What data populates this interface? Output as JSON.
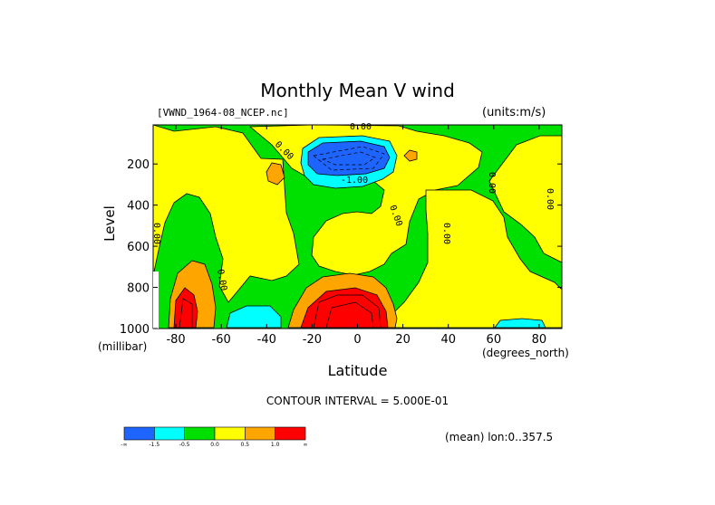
{
  "chart_data": {
    "type": "heatmap",
    "title": "Monthly Mean V wind",
    "dataset_label": "[VWND_1964-08_NCEP.nc]",
    "units_label": "(units:m/s)",
    "xlabel": "Latitude",
    "x_units": "(degrees_north)",
    "ylabel": "Level",
    "y_units": "(millibar)",
    "x_ticks": [
      -80,
      -60,
      -40,
      -20,
      0,
      20,
      40,
      60,
      80
    ],
    "x_tick_labels": [
      "-80",
      "-60",
      "-40",
      "-20",
      "0",
      "20",
      "40",
      "60",
      "80"
    ],
    "y_ticks": [
      200,
      400,
      600,
      800,
      1000
    ],
    "y_tick_labels": [
      "200",
      "400",
      "600",
      "800",
      "1000"
    ],
    "xlim": [
      -90,
      90
    ],
    "ylim": [
      1000,
      10
    ],
    "contour_interval_text": "CONTOUR INTERVAL = 5.000E-01",
    "subset_text": "(mean) lon:0..357.5",
    "contour_labels": [
      "0.00",
      "-1.00",
      "0.00",
      "0.00",
      "0.00",
      "0.00",
      "0.00",
      "0.00",
      "0.00"
    ],
    "colorbar": {
      "bins": [
        {
          "color": "#1e64ff"
        },
        {
          "color": "#00ffff"
        },
        {
          "color": "#00e000"
        },
        {
          "color": "#ffff00"
        },
        {
          "color": "#ffa500"
        },
        {
          "color": "#ff0000"
        }
      ],
      "boundary_labels": [
        "-∞",
        "-1.5",
        "-0.5",
        "0.0",
        "0.5",
        "1.0",
        "∞"
      ]
    },
    "regions": [
      {
        "name": "background",
        "color": "#00e000"
      },
      {
        "name": "sh-subtropics",
        "color": "#ffff00"
      },
      {
        "name": "tropics-midlevel",
        "color": "#ffff00"
      },
      {
        "name": "nh-midlatitudes",
        "color": "#ffff00"
      },
      {
        "name": "upper-tropical-minimum",
        "color": "#00ffff"
      },
      {
        "name": "upper-tropical-core",
        "color": "#1e64ff"
      },
      {
        "name": "lower-tropical-maximum",
        "color": "#ffa500"
      },
      {
        "name": "lower-tropical-core",
        "color": "#ff0000"
      },
      {
        "name": "antarctic-surface",
        "color": "#ffa500"
      },
      {
        "name": "antarctic-core",
        "color": "#ff0000"
      },
      {
        "name": "sh-surface-minimum",
        "color": "#00ffff"
      },
      {
        "name": "nh-surface-minimum",
        "color": "#00ffff"
      }
    ]
  }
}
